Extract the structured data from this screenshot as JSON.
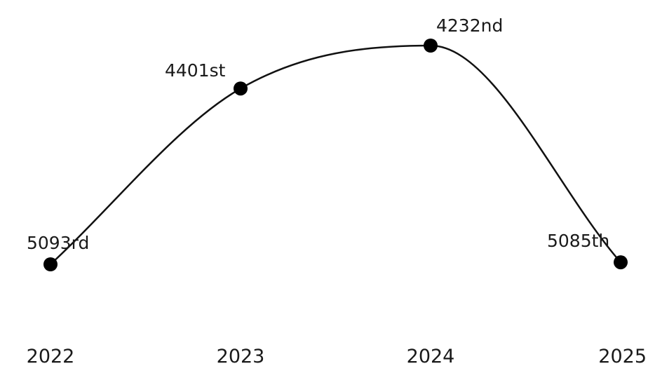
{
  "chart_data": {
    "type": "line",
    "title": "",
    "xlabel": "",
    "ylabel": "",
    "categories": [
      "2022",
      "2023",
      "2024",
      "2025"
    ],
    "series": [
      {
        "values": [
          5093,
          4401,
          4232,
          5085
        ],
        "data_labels": [
          "5093rd",
          "4401st",
          "4232nd",
          "5085th"
        ]
      }
    ],
    "y_axis": "inverted",
    "ylim": [
      5093,
      4232
    ],
    "line_style": "smooth",
    "line_color": "#111111",
    "marker_color": "#000000",
    "grid": false,
    "legend": "none"
  }
}
